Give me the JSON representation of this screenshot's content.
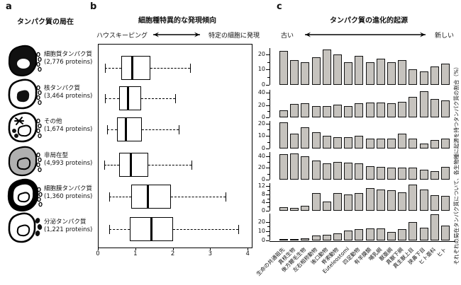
{
  "panels": {
    "a": {
      "letter": "a",
      "title": "タンパク質の局在",
      "items": [
        {
          "name": "細胞質タンパク質",
          "count": "(2,776 proteins)",
          "icon": "cytoplasm-cell-icon"
        },
        {
          "name": "核タンパク質",
          "count": "(3,464 proteins)",
          "icon": "nucleus-cell-icon"
        },
        {
          "name": "その他",
          "count": "(1,674 proteins)",
          "icon": "other-organelles-cell-icon"
        },
        {
          "name": "非局在型",
          "count": "(4,993 proteins)",
          "icon": "nonlocalized-cell-icon"
        },
        {
          "name": "細胞膜タンパク質",
          "count": "(1,360 proteins)",
          "icon": "membrane-cell-icon"
        },
        {
          "name": "分泌タンパク質",
          "count": "(1,221 proteins)",
          "icon": "secreted-cell-icon"
        }
      ]
    },
    "b": {
      "letter": "b",
      "title": "細胞種特異的な発現傾向",
      "left_label": "ハウスキーピング",
      "right_label": "特定の細胞に発現"
    },
    "c": {
      "letter": "c",
      "title": "タンパク質の進化的起源",
      "left_label": "古い",
      "right_label": "新しい",
      "y_caption": "それぞれの局在タンパク質について、各生物種に起源を持つタンパク質の割合（%）"
    }
  },
  "colors": {
    "bar_fill": "#c6c3be",
    "bar_border": "#111111",
    "gray_cell": "#b0b0b0",
    "black": "#000000"
  },
  "chart_data": [
    {
      "type": "boxplot",
      "title": "細胞種特異的な発現傾向",
      "orientation": "horizontal",
      "xlim": [
        0,
        4
      ],
      "xticks": [
        0,
        1,
        2,
        3,
        4
      ],
      "axis_left_label": "ハウスキーピング",
      "axis_right_label": "特定の細胞に発現",
      "groups": [
        {
          "name": "細胞質タンパク質 (2,776 proteins)",
          "whisker_low": 0.17,
          "q1": 0.6,
          "median": 0.9,
          "q3": 1.38,
          "whisker_high": 2.44
        },
        {
          "name": "核タンパク質 (3,464 proteins)",
          "whisker_low": 0.17,
          "q1": 0.55,
          "median": 0.79,
          "q3": 1.14,
          "whisker_high": 2.04
        },
        {
          "name": "その他 (1,674 proteins)",
          "whisker_low": 0.22,
          "q1": 0.5,
          "median": 0.72,
          "q3": 1.16,
          "whisker_high": 2.14
        },
        {
          "name": "非局在型 (4,993 proteins)",
          "whisker_low": 0.16,
          "q1": 0.55,
          "median": 0.87,
          "q3": 1.32,
          "whisker_high": 2.49
        },
        {
          "name": "細胞膜タンパク質 (1,360 proteins)",
          "whisker_low": 0.29,
          "q1": 0.88,
          "median": 1.31,
          "q3": 1.93,
          "whisker_high": 3.39
        },
        {
          "name": "分泌タンパク質 (1,221 proteins)",
          "whisker_low": 0.29,
          "q1": 0.84,
          "median": 1.41,
          "q3": 1.99,
          "whisker_high": 3.74
        }
      ]
    },
    {
      "type": "bar",
      "title": "タンパク質の進化的起源",
      "ylabel": "それぞれの局在タンパク質について、各生物種に起源を持つタンパク質の割合（%）",
      "categories": [
        "生命の共通祖先",
        "真核生物",
        "後方鞭毛生物",
        "左右相称動物",
        "後口動物",
        "脊索動物",
        "Euteleostomi",
        "四足動物",
        "有羊膜類",
        "哺乳綱",
        "獣亜綱",
        "真獣下綱",
        "真主獣上目",
        "狭鼻下目",
        "ヒト亜科",
        "ヒト"
      ],
      "series": [
        {
          "name": "細胞質タンパク質",
          "yticks": [
            20,
            10,
            0
          ],
          "ymax": 24,
          "values": [
            22,
            16,
            15,
            18,
            23,
            20,
            15,
            19,
            15,
            17,
            15,
            16,
            10,
            9,
            12,
            14
          ]
        },
        {
          "name": "核タンパク質",
          "yticks": [
            40,
            20,
            0
          ],
          "ymax": 45,
          "values": [
            11,
            22,
            23,
            19,
            19,
            21,
            18,
            23,
            24,
            24,
            23,
            25,
            34,
            43,
            30,
            28
          ]
        },
        {
          "name": "その他",
          "yticks": [
            20,
            10,
            0
          ],
          "ymax": 22,
          "values": [
            21,
            12,
            17,
            13,
            10,
            9,
            9,
            10,
            8,
            8,
            8,
            12,
            8,
            4,
            7,
            8
          ]
        },
        {
          "name": "非局在型",
          "yticks": [
            40,
            20,
            0
          ],
          "ymax": 47,
          "values": [
            44,
            45,
            40,
            32,
            28,
            30,
            29,
            28,
            23,
            22,
            20,
            21,
            20,
            17,
            15,
            22
          ]
        },
        {
          "name": "細胞膜タンパク質",
          "yticks": [
            12,
            8,
            4,
            0
          ],
          "ymax": 13.5,
          "values": [
            1.8,
            1.4,
            2.3,
            8.7,
            4.4,
            8.5,
            8,
            8.5,
            11,
            10.5,
            10,
            9,
            12.7,
            10.3,
            7.7,
            7.3
          ]
        },
        {
          "name": "分泌タンパク質",
          "yticks": [
            20,
            10,
            0
          ],
          "ymax": 29,
          "values": [
            0.7,
            0.3,
            2,
            5,
            6,
            7.5,
            10.5,
            12,
            13,
            13,
            9.5,
            12,
            19.5,
            14,
            28,
            16
          ]
        }
      ]
    }
  ]
}
